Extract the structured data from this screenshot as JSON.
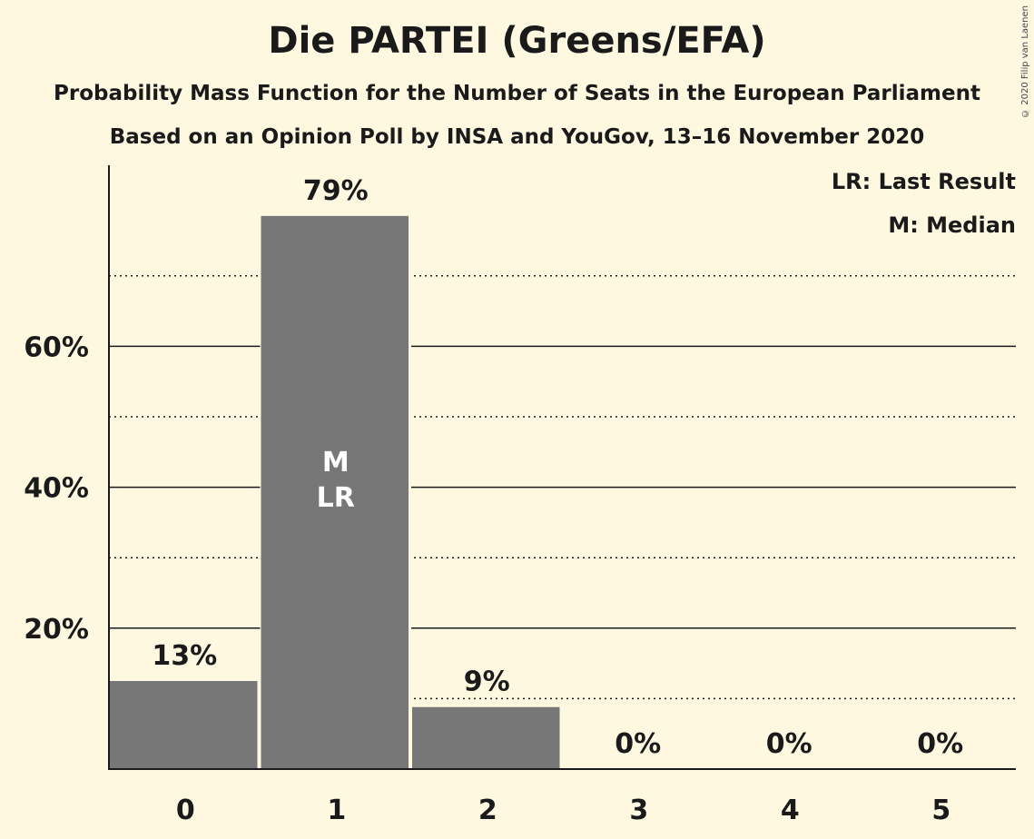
{
  "chart_data": {
    "type": "bar",
    "title": "Die PARTEI (Greens/EFA)",
    "subtitle": "Probability Mass Function for the Number of Seats in the European Parliament",
    "subtitle2": "Based on an Opinion Poll by INSA and YouGov, 13–16 November 2020",
    "categories": [
      "0",
      "1",
      "2",
      "3",
      "4",
      "5"
    ],
    "values": [
      12.5,
      78.5,
      8.8,
      0,
      0,
      0
    ],
    "data_labels": [
      "13%",
      "79%",
      "9%",
      "0%",
      "0%",
      "0%"
    ],
    "bar_markers": [
      "",
      "M\nLR",
      "",
      "",
      "",
      ""
    ],
    "ylim": [
      0,
      86
    ],
    "y_ticks": [
      20,
      40,
      60
    ],
    "y_tick_labels": [
      "20%",
      "40%",
      "60%"
    ],
    "minor_gridlines": [
      10,
      30,
      50,
      70
    ],
    "legend": [
      "LR: Last Result",
      "M: Median"
    ],
    "legend_position": "top-right",
    "bar_color": "#777777",
    "background_color": "#fef8e1",
    "copyright": "© 2020 Filip van Laenen"
  }
}
